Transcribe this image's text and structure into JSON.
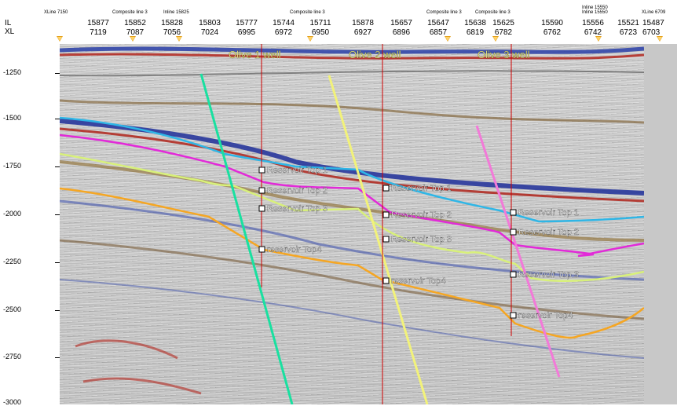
{
  "header": {
    "il_label": "IL",
    "xl_label": "XL",
    "columns": [
      {
        "il": "15877",
        "xl": "7119"
      },
      {
        "il": "15852",
        "xl": "7087"
      },
      {
        "il": "15828",
        "xl": "7056"
      },
      {
        "il": "15803",
        "xl": "7024"
      },
      {
        "il": "15777",
        "xl": "6995"
      },
      {
        "il": "15744",
        "xl": "6972"
      },
      {
        "il": "15711",
        "xl": "6950"
      },
      {
        "il": "15878",
        "xl": "6927"
      },
      {
        "il": "15657",
        "xl": "6896"
      },
      {
        "il": "15647",
        "xl": "6857"
      },
      {
        "il": "15638",
        "xl": "6819"
      },
      {
        "il": "15625",
        "xl": "6782"
      },
      {
        "il": "15590",
        "xl": "6762"
      },
      {
        "il": "15556",
        "xl": "6742"
      },
      {
        "il": "15521",
        "xl": "6723"
      },
      {
        "il": "15487",
        "xl": "6703"
      }
    ],
    "small_labels": {
      "xline_left": "XLine 7150",
      "composite_1": "Composite line 3",
      "inline_15825": "Inline 15825",
      "composite_2": "Composite line 3",
      "composite_3": "Composite line 3",
      "composite_4": "Composite line 3",
      "inline_top": "Inline 15550",
      "inline_15550": "Inline 15550",
      "xline_right": "XLine 6709"
    }
  },
  "depth_axis": {
    "labels": [
      "-1250",
      "-1500",
      "-1750",
      "-2000",
      "-2250",
      "-2500",
      "-2750",
      "-3000"
    ]
  },
  "wells": [
    {
      "name": "Olive 1  well"
    },
    {
      "name": "Olive 2  well"
    },
    {
      "name": "Olive 3  well"
    }
  ],
  "picks": {
    "well1": [
      "Reservoir Top 1",
      "Reservoir Top 2",
      "Reservoir Top 3",
      "reservoir Top4"
    ],
    "well2": [
      "Reservoir Top 1",
      "Reservoir Top 2",
      "Reservoir Top 3",
      "reservoir Top4"
    ],
    "well3": [
      "Reservoir Top 1",
      "Reservoir Top 2",
      "Reservoir Top 3",
      "reservoir Top4"
    ]
  },
  "colors": {
    "horizon_top1": "#2fb6e6",
    "horizon_top2": "#e22ad8",
    "horizon_top3": "#d8f07a",
    "horizon_top4": "#f5a623",
    "fault1": "#19e0a0",
    "fault2": "#f2f27a",
    "fault3": "#f27ad8",
    "well_line": "#d00000",
    "well_label": "#f5f59a",
    "marker": "#e3a019"
  }
}
